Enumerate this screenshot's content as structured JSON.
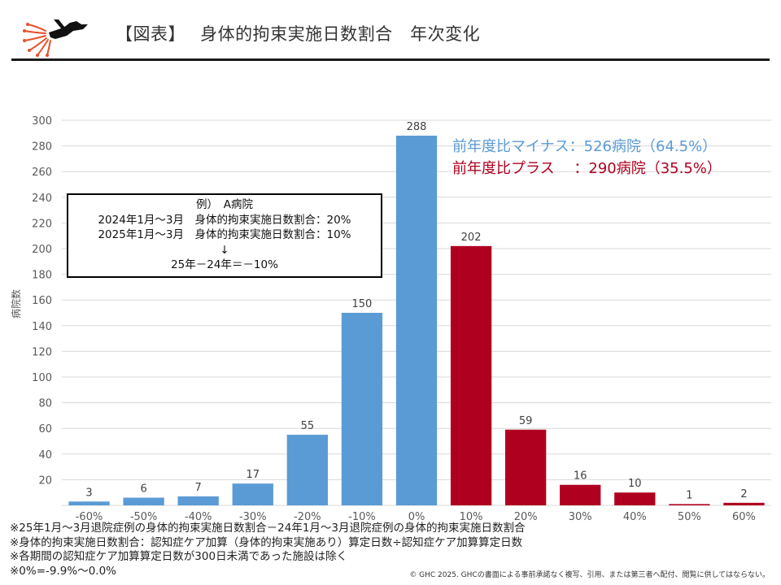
{
  "header": {
    "title": "【図表】　 身体的拘束実施日数割合　年次変化",
    "logo_icon": "ghc-dog-logo-icon"
  },
  "annotations": {
    "minus": "前年度比マイナス：526病院（64.5%）",
    "plus": "前年度比プラス　 ：290病院（35.5%）"
  },
  "example_box": {
    "lines": [
      "例）　A病院",
      "2024年1月～3月　身体的拘束実施日数割合：20%",
      "2025年1月～3月　身体的拘束実施日数割合：10%",
      "↓",
      "25年－24年＝－10%"
    ]
  },
  "notes": [
    "※25年1月～3月退院症例の身体的拘束実施日数割合－24年1月～3月退院症例の身体的拘束実施日数割合",
    "※身体的拘束実施日数割合：認知症ケア加算（身体的拘束実施あり）算定日数÷認知症ケア加算算定日数",
    "※各期間の認知症ケア加算算定日数が300日未満であった施設は除く",
    "※0%=-9.9%～0.0%"
  ],
  "copyright": "© GHC 2025. GHCの書面による事前承諾なく複写、引用、または第三者へ配付、閲覧に供してはならない。",
  "colors": {
    "decrease": "#5b9bd5",
    "increase": "#b00020",
    "grid": "#d9d9d9",
    "axis_text": "#595959"
  },
  "chart_data": {
    "type": "bar",
    "categories": [
      "-60%",
      "-50%",
      "-40%",
      "-30%",
      "-20%",
      "-10%",
      "0%",
      "10%",
      "20%",
      "30%",
      "40%",
      "50%",
      "60%"
    ],
    "values": [
      3,
      6,
      7,
      17,
      55,
      150,
      288,
      202,
      59,
      16,
      10,
      1,
      2
    ],
    "bar_colors": [
      "decrease",
      "decrease",
      "decrease",
      "decrease",
      "decrease",
      "decrease",
      "decrease",
      "increase",
      "increase",
      "increase",
      "increase",
      "increase",
      "increase"
    ],
    "ylabel": "病院数",
    "xlabel": "",
    "ylim": [
      0,
      300
    ],
    "yticks": [
      20,
      40,
      60,
      80,
      100,
      120,
      140,
      160,
      180,
      200,
      220,
      240,
      260,
      280,
      300
    ],
    "grid": true,
    "data_labels": true
  }
}
